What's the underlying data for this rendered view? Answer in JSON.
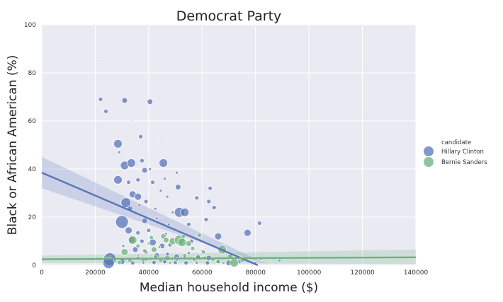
{
  "chart_data": {
    "type": "scatter",
    "title": "Democrat Party",
    "xlabel": "Median household income ($)",
    "ylabel": "Black or African American (%)",
    "xlim": [
      0,
      140000
    ],
    "ylim": [
      0,
      100
    ],
    "xticks": [
      0,
      20000,
      40000,
      60000,
      80000,
      100000,
      120000,
      140000
    ],
    "yticks": [
      0,
      20,
      40,
      60,
      80,
      100
    ],
    "grid": true,
    "legend": {
      "title": "candidate",
      "placement": "right"
    },
    "series": [
      {
        "name": "Hillary Clinton",
        "color": "#5975b8",
        "regression": {
          "x": [
            0,
            85000
          ],
          "y": [
            38.5,
            -2.0
          ],
          "band_upper": [
            45,
            0
          ],
          "band_lower": [
            32,
            -4
          ]
        },
        "points": [
          [
            23000,
            84,
            1
          ],
          [
            22000,
            69,
            3
          ],
          [
            24000,
            64,
            3
          ],
          [
            31000,
            68.5,
            4
          ],
          [
            40500,
            68,
            4
          ],
          [
            26000,
            54.5,
            1
          ],
          [
            28500,
            50.5,
            6
          ],
          [
            33500,
            60,
            1
          ],
          [
            37000,
            53.5,
            3
          ],
          [
            44500,
            53,
            1
          ],
          [
            29000,
            47,
            2
          ],
          [
            31000,
            41.5,
            6
          ],
          [
            33500,
            42.5,
            6
          ],
          [
            37500,
            43.5,
            3
          ],
          [
            45500,
            42.5,
            6
          ],
          [
            38500,
            39.5,
            4
          ],
          [
            40500,
            40,
            2
          ],
          [
            50500,
            38.5,
            2
          ],
          [
            28500,
            35.5,
            6
          ],
          [
            32500,
            34.5,
            3
          ],
          [
            36000,
            35.5,
            3
          ],
          [
            41500,
            34.5,
            3
          ],
          [
            46000,
            36,
            2
          ],
          [
            51000,
            32.5,
            4
          ],
          [
            63000,
            32,
            3
          ],
          [
            34000,
            29.5,
            5
          ],
          [
            36000,
            28.5,
            5
          ],
          [
            39000,
            26.5,
            3
          ],
          [
            44500,
            31,
            2
          ],
          [
            47000,
            28.5,
            2
          ],
          [
            58000,
            28,
            3
          ],
          [
            31500,
            26,
            7
          ],
          [
            33000,
            23.5,
            4
          ],
          [
            36500,
            25,
            2
          ],
          [
            42500,
            23.5,
            2
          ],
          [
            49000,
            22,
            2
          ],
          [
            51500,
            22,
            7
          ],
          [
            53500,
            22,
            6
          ],
          [
            62500,
            26.5,
            3
          ],
          [
            64500,
            24,
            3
          ],
          [
            30000,
            18,
            9
          ],
          [
            38500,
            18.5,
            4
          ],
          [
            43000,
            19.5,
            2
          ],
          [
            47500,
            17,
            2
          ],
          [
            32500,
            14.5,
            5
          ],
          [
            36000,
            13.5,
            3
          ],
          [
            40000,
            14.5,
            3
          ],
          [
            46500,
            13,
            2
          ],
          [
            55000,
            17,
            3
          ],
          [
            61500,
            19,
            3
          ],
          [
            33500,
            10.5,
            5
          ],
          [
            37500,
            10,
            3
          ],
          [
            41500,
            9.5,
            5
          ],
          [
            45000,
            8,
            4
          ],
          [
            48000,
            8.5,
            3
          ],
          [
            56000,
            10,
            3
          ],
          [
            66000,
            12,
            5
          ],
          [
            77000,
            13.5,
            5
          ],
          [
            81500,
            17.5,
            3
          ],
          [
            35000,
            6.5,
            4
          ],
          [
            39000,
            5.5,
            3
          ],
          [
            43000,
            4,
            4
          ],
          [
            47000,
            4.5,
            3
          ],
          [
            50500,
            3.5,
            4
          ],
          [
            53500,
            3,
            3
          ],
          [
            58500,
            3.5,
            3
          ],
          [
            62500,
            3,
            4
          ],
          [
            25500,
            2.5,
            9
          ],
          [
            25000,
            1,
            8
          ],
          [
            30000,
            1.5,
            4
          ],
          [
            34000,
            1,
            3
          ],
          [
            38000,
            1.5,
            3
          ],
          [
            42000,
            1.2,
            3
          ],
          [
            46000,
            1.5,
            3
          ],
          [
            50000,
            1.2,
            3
          ],
          [
            54000,
            1,
            3
          ],
          [
            58000,
            1.2,
            3
          ],
          [
            62000,
            1,
            3
          ],
          [
            66000,
            1.5,
            3
          ],
          [
            70000,
            1,
            4
          ],
          [
            74000,
            1.5,
            3
          ],
          [
            80000,
            1,
            2
          ],
          [
            89000,
            2,
            2
          ],
          [
            36000,
            4,
            2
          ],
          [
            44000,
            2.5,
            2
          ],
          [
            55000,
            5,
            2
          ],
          [
            60000,
            6,
            2
          ],
          [
            68000,
            5,
            2
          ],
          [
            72000,
            3,
            2
          ],
          [
            30500,
            8,
            2
          ]
        ]
      },
      {
        "name": "Bernie Sanders",
        "color": "#6db27c",
        "regression": {
          "x": [
            0,
            140000
          ],
          "y": [
            2.5,
            3.3
          ],
          "band_upper": [
            4.0,
            6.5
          ],
          "band_lower": [
            1.0,
            0.5
          ]
        },
        "points": [
          [
            31000,
            5.5,
            5
          ],
          [
            34000,
            10.5,
            6
          ],
          [
            36000,
            8,
            3
          ],
          [
            38500,
            6,
            3
          ],
          [
            41000,
            11.5,
            3
          ],
          [
            42000,
            6.5,
            4
          ],
          [
            45500,
            12,
            4
          ],
          [
            46500,
            10.5,
            4
          ],
          [
            48000,
            8.5,
            3
          ],
          [
            49000,
            10,
            5
          ],
          [
            51500,
            10.5,
            7
          ],
          [
            52500,
            9.5,
            6
          ],
          [
            55000,
            9,
            4
          ],
          [
            56500,
            7,
            3
          ],
          [
            59000,
            12.5,
            3
          ],
          [
            60500,
            5.5,
            3
          ],
          [
            67500,
            6.5,
            6
          ],
          [
            70500,
            3.5,
            4
          ],
          [
            72000,
            1,
            6
          ],
          [
            75000,
            2,
            3
          ],
          [
            33000,
            2,
            3
          ],
          [
            36000,
            3,
            3
          ],
          [
            39000,
            2.5,
            3
          ],
          [
            42500,
            3.5,
            3
          ],
          [
            44500,
            2,
            3
          ],
          [
            47000,
            3,
            4
          ],
          [
            50500,
            2.5,
            3
          ],
          [
            53500,
            4,
            3
          ],
          [
            57000,
            2.5,
            3
          ],
          [
            61000,
            3,
            3
          ],
          [
            64000,
            2.5,
            3
          ],
          [
            66000,
            1.5,
            3
          ],
          [
            29000,
            1.2,
            3
          ],
          [
            38000,
            1,
            2
          ],
          [
            48000,
            1,
            2
          ],
          [
            58000,
            1,
            2
          ],
          [
            68000,
            1,
            2
          ],
          [
            78000,
            1.5,
            2
          ],
          [
            82000,
            2.5,
            2
          ],
          [
            40000,
            9,
            2
          ],
          [
            44000,
            7.5,
            2
          ],
          [
            53000,
            12,
            3
          ]
        ]
      }
    ]
  }
}
